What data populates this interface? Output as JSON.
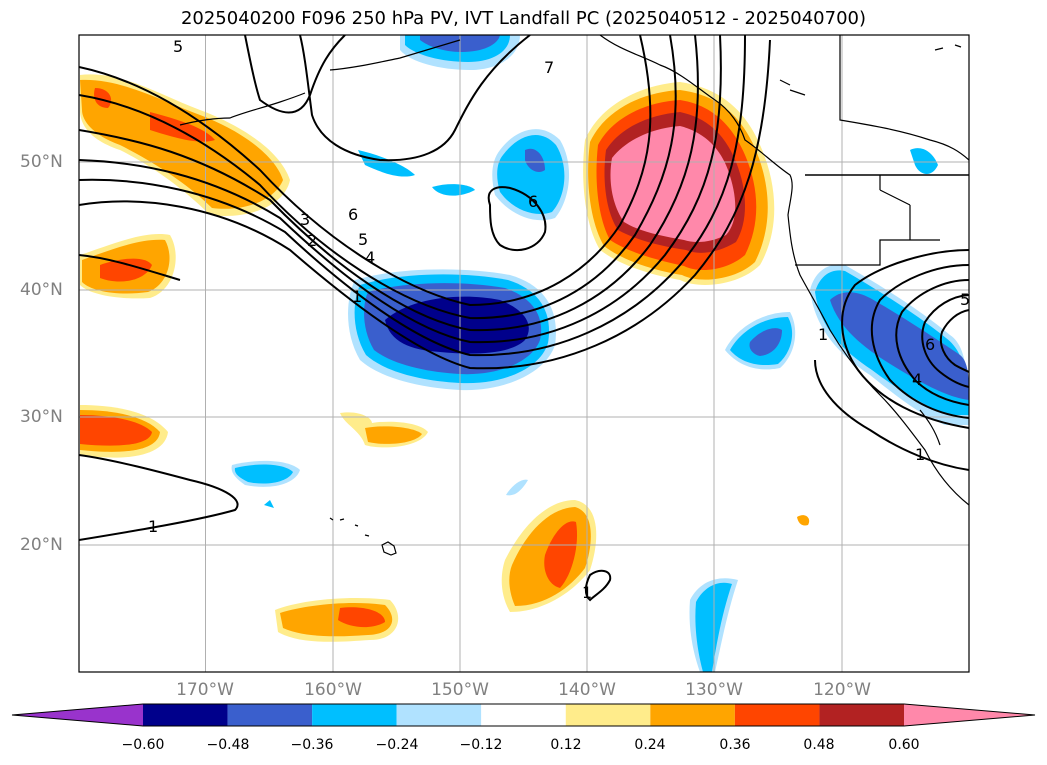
{
  "title": "2025040200 F096 250 hPa PV, IVT Landfall PC (2025040512 - 2025040700)",
  "lat_labels": [
    "50°N",
    "40°N",
    "30°N",
    "20°N"
  ],
  "lon_labels": [
    "170°W",
    "160°W",
    "150°W",
    "140°W",
    "130°W",
    "120°W"
  ],
  "contour_labels": [
    "5",
    "7",
    "6",
    "6",
    "5",
    "4",
    "3",
    "2",
    "1",
    "1",
    "1",
    "5",
    "6",
    "4",
    "1",
    "1"
  ],
  "colorbar": {
    "tick_labels": [
      "−0.60",
      "−0.48",
      "−0.36",
      "−0.24",
      "−0.12",
      "0.12",
      "0.24",
      "0.36",
      "0.48",
      "0.60"
    ],
    "colors": [
      "#9933cc",
      "#00008b",
      "#3a5fcd",
      "#00bfff",
      "#b0e2ff",
      "#ffffff",
      "#ffec8b",
      "#ffa500",
      "#ff4500",
      "#b22222",
      "#ff88aa"
    ]
  },
  "map_extent": {
    "lon": [
      -180,
      -110
    ],
    "lat": [
      10,
      60
    ]
  },
  "colors": {
    "land_outline": "#000000",
    "grid": "#b0b0b0",
    "tick_text": "#808080"
  }
}
